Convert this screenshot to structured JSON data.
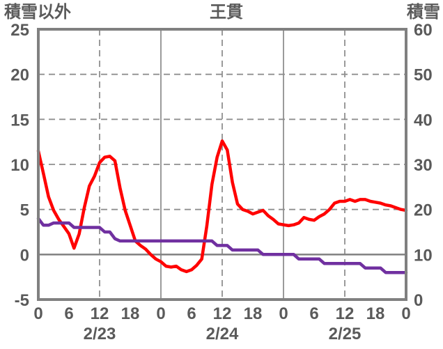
{
  "header": {
    "left_axis_label": "積雪以外",
    "title": "王貫",
    "right_axis_label": "積雪"
  },
  "chart_data": {
    "type": "line",
    "title": "王貫",
    "x_unit": "hour",
    "x_range": [
      0,
      72
    ],
    "left_axis": {
      "label": "積雪以外",
      "range": [
        -5,
        25
      ],
      "ticks": [
        25,
        20,
        15,
        10,
        5,
        0,
        -5
      ]
    },
    "right_axis": {
      "label": "積雪",
      "range": [
        0,
        60
      ],
      "ticks": [
        60,
        50,
        40,
        30,
        20,
        10,
        0
      ]
    },
    "x_ticks": [
      {
        "hour": 0,
        "label": "0"
      },
      {
        "hour": 6,
        "label": "6"
      },
      {
        "hour": 12,
        "label": "12"
      },
      {
        "hour": 18,
        "label": "18"
      },
      {
        "hour": 24,
        "label": "0"
      },
      {
        "hour": 30,
        "label": "6"
      },
      {
        "hour": 36,
        "label": "12"
      },
      {
        "hour": 42,
        "label": "18"
      },
      {
        "hour": 48,
        "label": "0"
      },
      {
        "hour": 54,
        "label": "6"
      },
      {
        "hour": 60,
        "label": "12"
      },
      {
        "hour": 66,
        "label": "18"
      },
      {
        "hour": 72,
        "label": "0"
      }
    ],
    "date_labels": [
      {
        "hour": 12,
        "label": "2/23"
      },
      {
        "hour": 36,
        "label": "2/24"
      },
      {
        "hour": 60,
        "label": "2/25"
      }
    ],
    "gridlines": {
      "horizontal_dashed_left_values": [
        20,
        15,
        10,
        5
      ],
      "zero_line_left_value": 0,
      "vertical_dashed_hours": [
        12,
        36,
        60
      ],
      "vertical_solid_hours": [
        24,
        48
      ]
    },
    "palette": {
      "grid": "#8f8f8f",
      "border": "#808080",
      "zero_line": "#808080",
      "text": "#5a5a5a",
      "background": "#ffffff"
    },
    "series": [
      {
        "name": "積雪以外",
        "axis": "left",
        "color": "#ff0000",
        "hour_step": 1,
        "values": [
          11.5,
          9.0,
          6.4,
          4.9,
          3.9,
          3.1,
          2.3,
          0.7,
          2.3,
          5.2,
          7.6,
          8.7,
          10.2,
          10.8,
          10.9,
          10.4,
          7.4,
          4.9,
          3.2,
          1.5,
          1.0,
          0.6,
          0.0,
          -0.5,
          -0.8,
          -1.3,
          -1.4,
          -1.3,
          -1.7,
          -1.9,
          -1.7,
          -1.2,
          -0.5,
          3.2,
          7.8,
          10.8,
          12.6,
          11.6,
          8.0,
          5.6,
          5.0,
          4.8,
          4.5,
          4.7,
          4.9,
          4.3,
          3.9,
          3.4,
          3.3,
          3.2,
          3.3,
          3.5,
          4.1,
          3.9,
          3.8,
          4.2,
          4.5,
          5.0,
          5.7,
          5.9,
          5.9,
          6.1,
          5.9,
          6.1,
          6.1,
          5.9,
          5.8,
          5.7,
          5.5,
          5.4,
          5.2,
          5.0,
          4.9
        ]
      },
      {
        "name": "積雪",
        "axis": "right",
        "color": "#7030a0",
        "hour_step": 1,
        "values": [
          18,
          16.5,
          16.5,
          17,
          17,
          17,
          17,
          16,
          16,
          16,
          16,
          16,
          16,
          15,
          15,
          13.5,
          13,
          13,
          13,
          13,
          13,
          13,
          13,
          13,
          13,
          13,
          13,
          13,
          13,
          13,
          13,
          13,
          13,
          13,
          13,
          12,
          12,
          12,
          11,
          11,
          11,
          11,
          11,
          11,
          10,
          10,
          10,
          10,
          10,
          10,
          10,
          9,
          9,
          9,
          9,
          9,
          8,
          8,
          8,
          8,
          8,
          8,
          8,
          8,
          7,
          7,
          7,
          7,
          6,
          6,
          6,
          6,
          6
        ]
      }
    ]
  }
}
